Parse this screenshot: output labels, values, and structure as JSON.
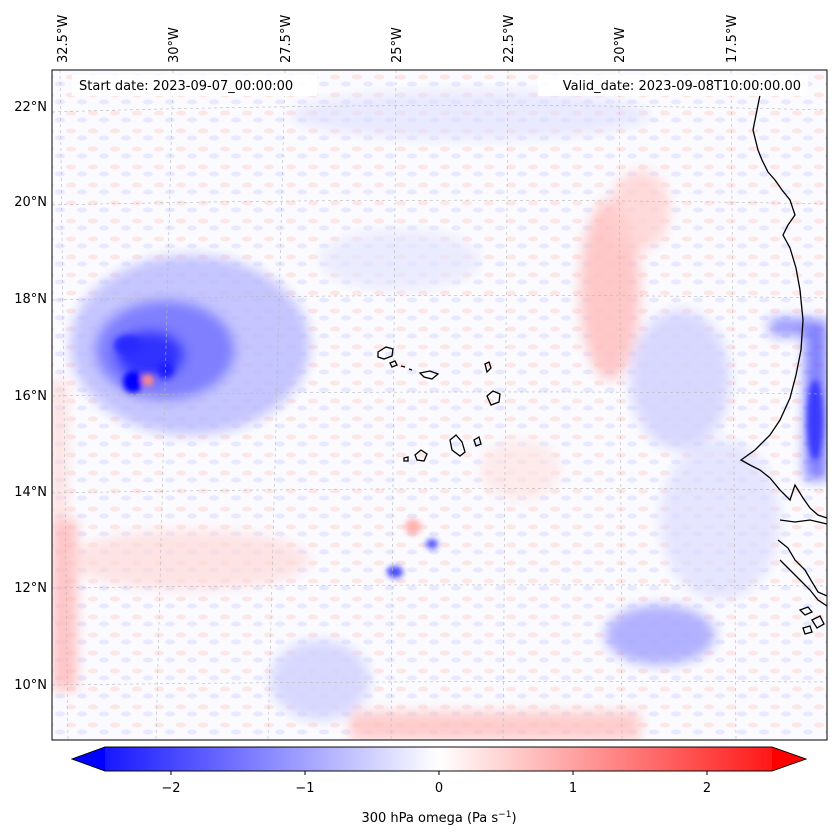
{
  "header": {
    "start_date": "Start date: 2023-09-07_00:00:00",
    "valid_date": "Valid_date: 2023-09-08T10:00:00.00"
  },
  "axes": {
    "lon_labels": [
      "32.5°W",
      "30°W",
      "27.5°W",
      "25°W",
      "22.5°W",
      "20°W",
      "17.5°W"
    ],
    "lat_labels": [
      "22°N",
      "20°N",
      "18°N",
      "16°N",
      "14°N",
      "12°N",
      "10°N"
    ]
  },
  "colorbar": {
    "label": "300 hPa omega (Pa s",
    "label_sup": "−1",
    "label_close": ")",
    "ticks": [
      "−2",
      "−1",
      "0",
      "1",
      "2"
    ],
    "colormap": "bwr",
    "range": [
      -2.75,
      2.75
    ],
    "colors": {
      "min": "#0000ff",
      "mid": "#ffffff",
      "max": "#ff0000"
    }
  },
  "map": {
    "field": "300 hPa omega",
    "units": "Pa s^-1",
    "projection_extent": {
      "lon": [
        -33,
        -16.5
      ],
      "lat": [
        8.8,
        22.8
      ]
    },
    "features": [
      {
        "name": "tropical-cyclone-updraft",
        "lon": -31.2,
        "lat": 16.4,
        "sign": "negative"
      },
      {
        "name": "cape-verde-islands",
        "lon": -23.7,
        "lat": 15.9,
        "sign": "neutral"
      },
      {
        "name": "west-africa-coastline",
        "lon": -17.2,
        "lat": 14.7,
        "sign": "neutral"
      }
    ]
  }
}
